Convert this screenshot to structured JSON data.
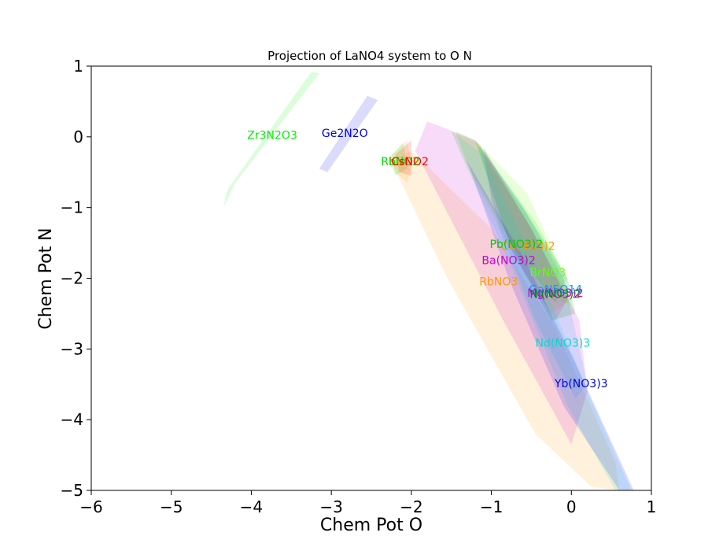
{
  "chart_data": {
    "type": "area",
    "title": "Projection of LaNO4 system to O N",
    "xlabel": "Chem Pot O",
    "ylabel": "Chem Pot N",
    "xlim": [
      -6,
      1
    ],
    "ylim": [
      -5,
      1
    ],
    "xticks": [
      -6,
      -5,
      -4,
      -3,
      -2,
      -1,
      0,
      1
    ],
    "yticks": [
      1,
      0,
      -1,
      -2,
      -3,
      -4,
      -5
    ],
    "xtick_labels": [
      "−6",
      "−5",
      "−4",
      "−3",
      "−2",
      "−1",
      "0",
      "1"
    ],
    "ytick_labels": [
      "1",
      "0",
      "−1",
      "−2",
      "−3",
      "−4",
      "−5"
    ],
    "grid": false,
    "regions": [
      {
        "name": "RbNO3",
        "label": "RbNO3",
        "color": "#ff9900",
        "label_at": [
          -1.15,
          -2.1
        ],
        "polygon": [
          [
            -2.25,
            -0.35
          ],
          [
            -1.55,
            -2.0
          ],
          [
            -0.45,
            -4.2
          ],
          [
            0.25,
            -4.95
          ],
          [
            0.6,
            -5
          ],
          [
            0.55,
            -4.6
          ],
          [
            -0.2,
            -2.7
          ],
          [
            -1.0,
            -1.3
          ],
          [
            -2.0,
            -0.2
          ]
        ]
      },
      {
        "name": "Ba(NO3)2",
        "label": "Ba(NO3)2",
        "color": "#cc00cc",
        "label_at": [
          -1.12,
          -1.8
        ],
        "polygon": [
          [
            -1.95,
            -0.2
          ],
          [
            -1.8,
            0.22
          ],
          [
            -1.2,
            -0.05
          ],
          [
            -0.5,
            -1.3
          ],
          [
            0.1,
            -2.6
          ],
          [
            0.2,
            -3.6
          ],
          [
            0.0,
            -4.35
          ],
          [
            -0.85,
            -2.6
          ]
        ]
      },
      {
        "name": "Cd(NO3)2",
        "label": "Cd(NO3)2",
        "color": "#ff9900",
        "label_at": [
          -0.88,
          -1.6
        ],
        "polygon": [
          [
            -1.5,
            0.08
          ],
          [
            -1.15,
            -0.1
          ],
          [
            -0.55,
            -1.2
          ],
          [
            0.0,
            -2.3
          ],
          [
            -0.25,
            -2.5
          ],
          [
            -0.7,
            -1.7
          ],
          [
            -1.25,
            -0.55
          ]
        ]
      },
      {
        "name": "Pb(NO3)2",
        "label": "Pb(NO3)2",
        "color": "#00cc00",
        "label_at": [
          -1.02,
          -1.57
        ],
        "polygon": [
          [
            -1.45,
            0.08
          ],
          [
            -1.2,
            -0.05
          ],
          [
            -0.45,
            -1.2
          ],
          [
            -0.05,
            -2.0
          ],
          [
            -0.2,
            -2.35
          ],
          [
            -0.7,
            -1.6
          ],
          [
            -1.3,
            -0.4
          ]
        ]
      },
      {
        "name": "BrNO3",
        "label": "BrNO3",
        "color": "#66ff00",
        "label_at": [
          -0.52,
          -1.97
        ],
        "polygon": [
          [
            -1.2,
            -0.05
          ],
          [
            -0.55,
            -0.8
          ],
          [
            -0.15,
            -1.8
          ],
          [
            0.0,
            -2.4
          ],
          [
            -0.3,
            -2.2
          ],
          [
            -0.8,
            -1.4
          ]
        ]
      },
      {
        "name": "GaN5O14",
        "label": "GaN5O14",
        "color": "#00a0ff",
        "label_at": [
          -0.53,
          -2.21
        ],
        "polygon": [
          [
            -1.15,
            -0.1
          ],
          [
            -0.6,
            -1.0
          ],
          [
            -0.1,
            -2.0
          ],
          [
            0.2,
            -3.5
          ],
          [
            0.05,
            -3.7
          ],
          [
            -0.45,
            -2.6
          ],
          [
            -0.9,
            -1.3
          ]
        ]
      },
      {
        "name": "Mg(NO3)2",
        "label": "Mg(NO3)2",
        "color": "#cc00cc",
        "label_at": [
          -0.55,
          -2.26
        ],
        "polygon": [
          [
            -1.1,
            -0.15
          ],
          [
            -0.5,
            -1.3
          ],
          [
            -0.05,
            -2.3
          ],
          [
            -0.2,
            -2.6
          ],
          [
            -0.6,
            -1.9
          ],
          [
            -1.0,
            -0.9
          ]
        ]
      },
      {
        "name": "Ni(NO3)2",
        "label": "Ni(NO3)2",
        "color": "#008800",
        "label_at": [
          -0.52,
          -2.28
        ],
        "polygon": [
          [
            -1.2,
            -0.05
          ],
          [
            -0.55,
            -1.1
          ],
          [
            -0.05,
            -2.0
          ],
          [
            0.05,
            -2.5
          ],
          [
            -0.25,
            -2.6
          ],
          [
            -0.75,
            -1.6
          ]
        ]
      },
      {
        "name": "Nd(NO3)3",
        "label": "Nd(NO3)3",
        "color": "#00ddcc",
        "label_at": [
          -0.45,
          -2.97
        ],
        "polygon": [
          [
            -1.5,
            0.08
          ],
          [
            -1.1,
            -0.25
          ],
          [
            -0.45,
            -1.8
          ],
          [
            0.2,
            -3.6
          ],
          [
            0.75,
            -5
          ],
          [
            0.55,
            -5
          ],
          [
            -0.05,
            -3.8
          ],
          [
            -0.8,
            -1.7
          ],
          [
            -1.4,
            -0.2
          ]
        ]
      },
      {
        "name": "Yb(NO3)3",
        "label": "Yb(NO3)3",
        "color": "#0000ee",
        "label_at": [
          -0.21,
          -3.54
        ],
        "polygon": [
          [
            -1.3,
            -0.35
          ],
          [
            -0.6,
            -1.7
          ],
          [
            0.05,
            -3.2
          ],
          [
            0.78,
            -5
          ],
          [
            0.6,
            -5
          ],
          [
            -0.1,
            -3.8
          ],
          [
            -0.75,
            -2.1
          ]
        ]
      },
      {
        "name": "KNO2",
        "label": "KNO2",
        "color": "#ff9900",
        "label_at": [
          -2.28,
          -0.4
        ],
        "polygon": [
          [
            -2.25,
            -0.25
          ],
          [
            -2.05,
            -0.05
          ],
          [
            -2.0,
            -0.4
          ],
          [
            -2.05,
            -0.65
          ],
          [
            -2.2,
            -0.5
          ]
        ]
      },
      {
        "name": "RbNO2",
        "label": "RbNO2",
        "color": "#00dd00",
        "label_at": [
          -2.38,
          -0.4
        ],
        "polygon": [
          [
            -2.28,
            -0.3
          ],
          [
            -2.1,
            -0.08
          ],
          [
            -2.05,
            -0.45
          ],
          [
            -2.2,
            -0.55
          ]
        ]
      },
      {
        "name": "CsNO2",
        "label": "CsNO2",
        "color": "#ff0000",
        "label_at": [
          -2.25,
          -0.4
        ],
        "polygon": [
          [
            -2.2,
            -0.25
          ],
          [
            -2.0,
            -0.05
          ],
          [
            -2.0,
            -0.55
          ],
          [
            -2.15,
            -0.5
          ]
        ]
      },
      {
        "name": "Ge2N2O",
        "label": "Ge2N2O",
        "color": "#0000ee",
        "label_at": [
          -3.12,
          0.0
        ],
        "polygon": [
          [
            -3.15,
            -0.45
          ],
          [
            -2.55,
            0.58
          ],
          [
            -2.42,
            0.52
          ],
          [
            -3.05,
            -0.5
          ]
        ]
      },
      {
        "name": "Zr3N2O3",
        "label": "Zr3N2O3",
        "color": "#00ee00",
        "label_at": [
          -4.05,
          -0.03
        ],
        "polygon": [
          [
            -4.35,
            -1.0
          ],
          [
            -4.3,
            -0.75
          ],
          [
            -3.25,
            0.92
          ],
          [
            -3.15,
            0.9
          ],
          [
            -4.2,
            -0.65
          ]
        ]
      }
    ]
  }
}
